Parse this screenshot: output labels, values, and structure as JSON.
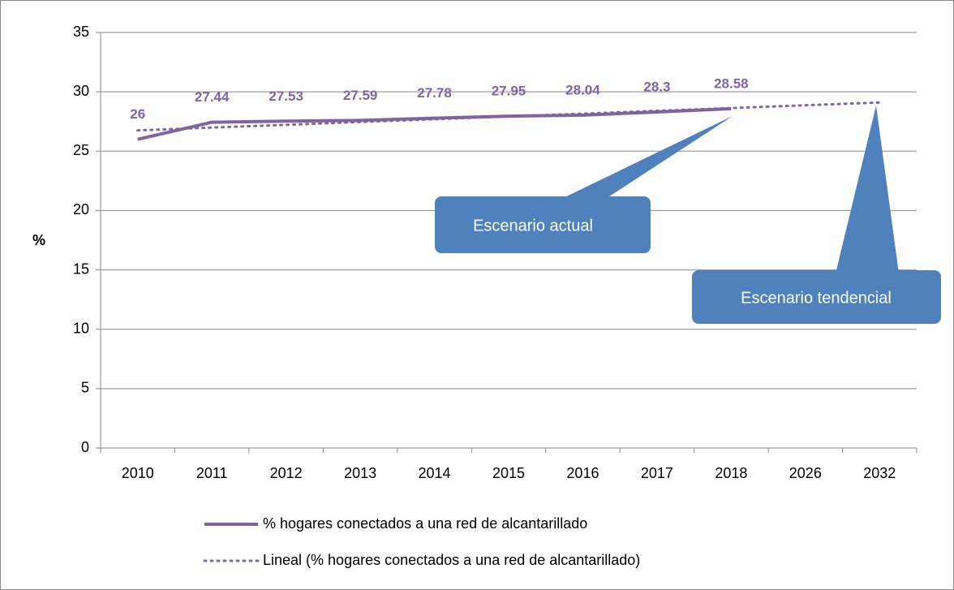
{
  "chart_data": {
    "type": "line",
    "y_label": "%",
    "categories": [
      "2010",
      "2011",
      "2012",
      "2013",
      "2014",
      "2015",
      "2016",
      "2017",
      "2018",
      "2026",
      "2032"
    ],
    "series": [
      {
        "name": "% hogares conectados a una red de alcantarillado",
        "color": "#8064a2",
        "style": "solid",
        "values": [
          26,
          27.44,
          27.53,
          27.59,
          27.78,
          27.95,
          28.04,
          28.3,
          28.58,
          null,
          null
        ],
        "data_labels": true
      },
      {
        "name": "Lineal (% hogares conectados a una red de alcantarillado)",
        "color": "#8064a2",
        "style": "dotted",
        "values": [
          26.75,
          26.99,
          27.22,
          27.46,
          27.69,
          27.93,
          28.16,
          28.4,
          28.63,
          28.87,
          29.1
        ],
        "data_labels": false
      }
    ],
    "ylim": [
      0,
      35
    ],
    "yticks": [
      0,
      5,
      10,
      15,
      20,
      25,
      30,
      35
    ],
    "grid": true,
    "annotations": [
      "Escenario actual",
      "Escenario tendencial"
    ],
    "legend": "bottom"
  }
}
